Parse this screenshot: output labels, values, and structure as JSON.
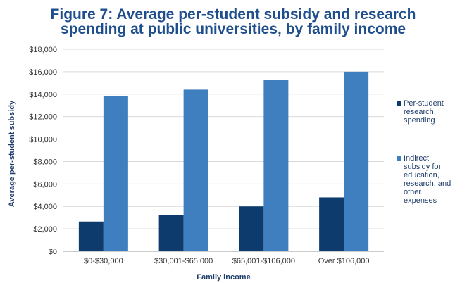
{
  "chart_data": {
    "type": "bar",
    "title_lines": [
      "Figure 7: Average per-student subsidy and research",
      "spending at public universities, by family income"
    ],
    "xlabel": "Family income",
    "ylabel": "Average per-student subsidy",
    "ylim": [
      0,
      18000
    ],
    "yticks": [
      0,
      2000,
      4000,
      6000,
      8000,
      10000,
      12000,
      14000,
      16000,
      18000
    ],
    "ytick_labels": [
      "$0",
      "$2,000",
      "$4,000",
      "$6,000",
      "$8,000",
      "$10,000",
      "$12,000",
      "$14,000",
      "$16,000",
      "$18,000"
    ],
    "grid": true,
    "legend_position": "right",
    "categories": [
      "$0-$30,000",
      "$30,001-$65,000",
      "$65,001-$106,000",
      "Over $106,000"
    ],
    "series": [
      {
        "name_lines": [
          "Per-student",
          "research",
          "spending"
        ],
        "color": "#0d3b6e",
        "values": [
          2650,
          3200,
          4000,
          4800
        ]
      },
      {
        "name_lines": [
          "Indirect",
          "subsidy for",
          "education,",
          "research, and",
          "other",
          "expenses"
        ],
        "color": "#3f7fbf",
        "values": [
          13800,
          14400,
          15300,
          16000
        ]
      }
    ]
  }
}
